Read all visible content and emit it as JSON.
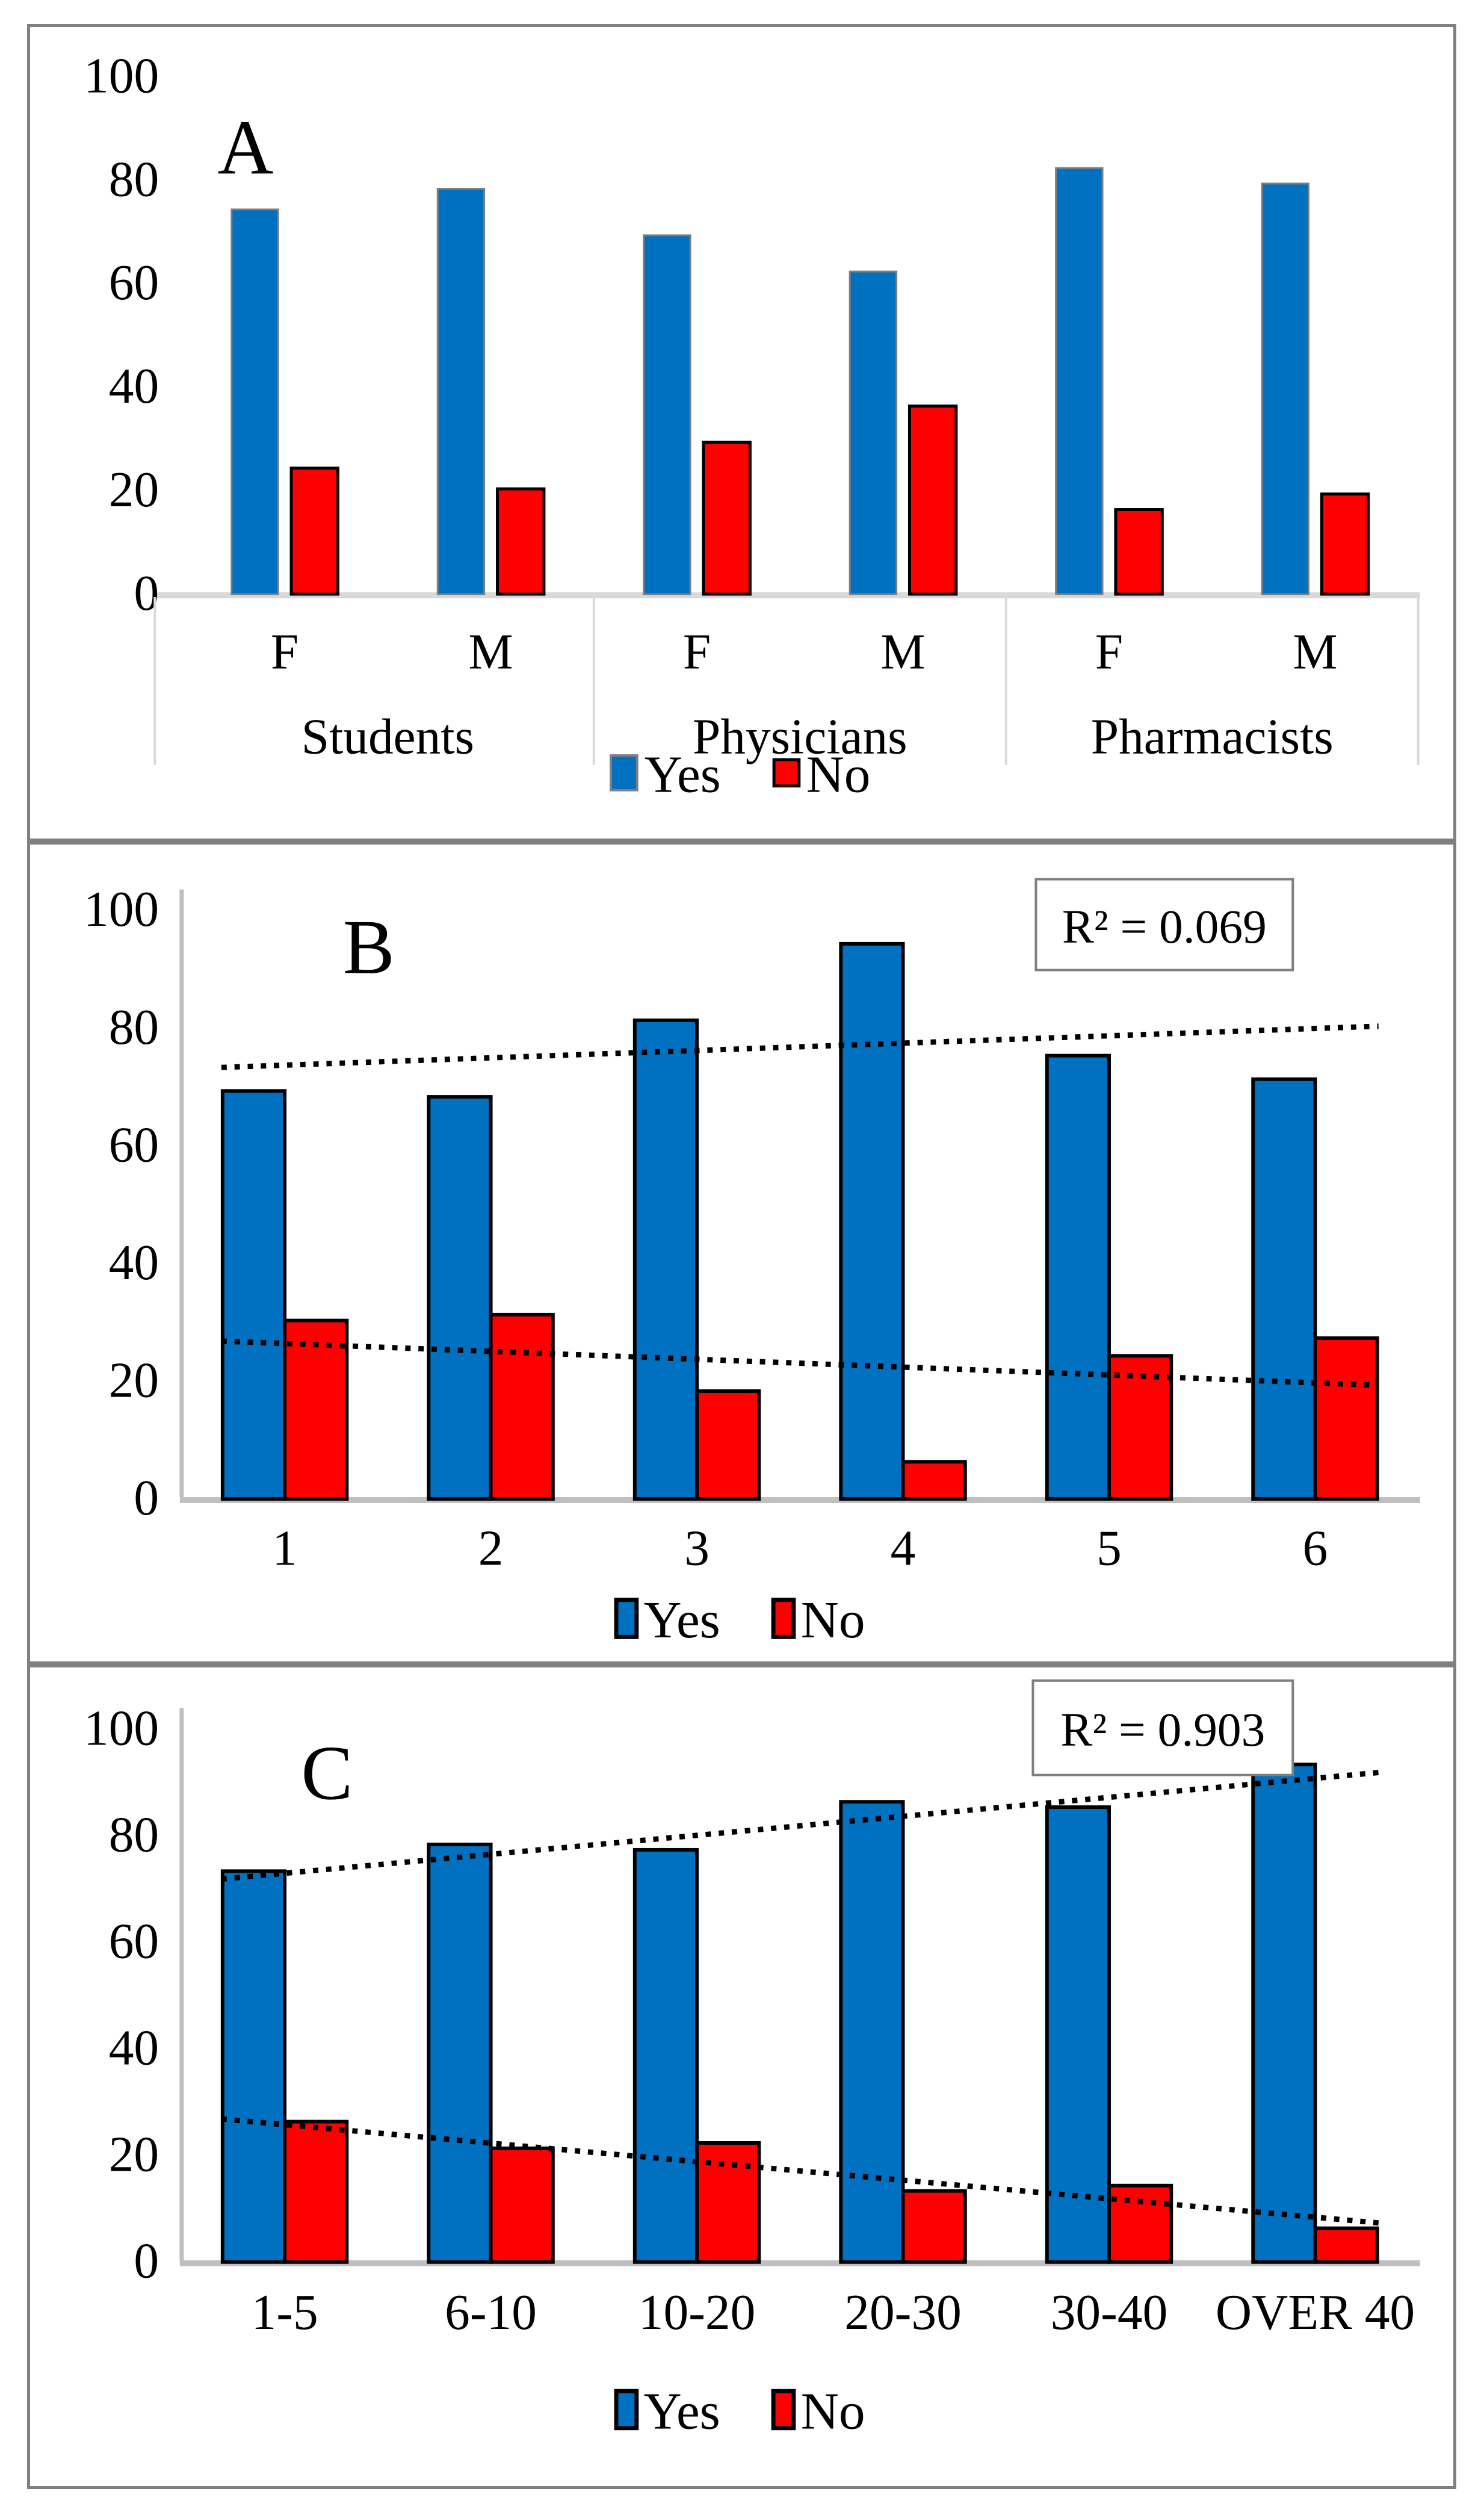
{
  "figure": {
    "background_color": "#FFFFFF",
    "panel_border_color": "#808080",
    "axis_color_panel_a": "#D9D9D9",
    "axis_color_panels_bc": "#BFBFBF",
    "trendline_color": "#000000",
    "series_colors": {
      "yes": "#0070C0",
      "no": "#FE0000"
    },
    "legend": {
      "yes_label": "Yes",
      "no_label": "No"
    }
  },
  "chart_data": [
    {
      "id": "A",
      "type": "bar",
      "title": "A",
      "categories": [
        "F",
        "M",
        "F",
        "M",
        "F",
        "M"
      ],
      "group_labels": [
        "Students",
        "Physicians",
        "Pharmacists"
      ],
      "series": [
        {
          "name": "Yes",
          "color": "#0070C0",
          "values": [
            74,
            78,
            69,
            62,
            82,
            79
          ]
        },
        {
          "name": "No",
          "color": "#FE0000",
          "values": [
            24,
            20,
            29,
            36,
            16,
            19
          ]
        }
      ],
      "ylim": [
        0,
        100
      ],
      "yticks": [
        0,
        20,
        40,
        60,
        80,
        100
      ],
      "grid": false,
      "legend_position": "bottom"
    },
    {
      "id": "B",
      "type": "bar",
      "title": "B",
      "categories": [
        "1",
        "2",
        "3",
        "4",
        "5",
        "6"
      ],
      "series": [
        {
          "name": "Yes",
          "color": "#0070C0",
          "values": [
            69,
            68,
            81,
            94,
            75,
            71
          ]
        },
        {
          "name": "No",
          "color": "#FE0000",
          "values": [
            30,
            31,
            18,
            6,
            24,
            27
          ]
        }
      ],
      "ylim": [
        0,
        100
      ],
      "yticks": [
        0,
        20,
        40,
        60,
        80,
        100
      ],
      "grid": false,
      "r2_label": "R² = 0.069",
      "trendlines": [
        {
          "series": "Yes",
          "style": "dotted",
          "start_value": 73,
          "end_value": 80
        },
        {
          "series": "No",
          "style": "dotted",
          "start_value": 26.5,
          "end_value": 19
        }
      ],
      "legend_position": "bottom"
    },
    {
      "id": "C",
      "type": "bar",
      "title": "C",
      "categories": [
        "1-5",
        "6-10",
        "10-20",
        "20-30",
        "30-40",
        "OVER 40"
      ],
      "series": [
        {
          "name": "Yes",
          "color": "#0070C0",
          "values": [
            73,
            78,
            77,
            86,
            85,
            93
          ]
        },
        {
          "name": "No",
          "color": "#FE0000",
          "values": [
            26,
            21,
            22,
            13,
            14,
            6
          ]
        }
      ],
      "ylim": [
        0,
        100
      ],
      "yticks": [
        0,
        20,
        40,
        60,
        80,
        100
      ],
      "grid": false,
      "r2_label": "R² = 0.903",
      "trendlines": [
        {
          "series": "Yes",
          "style": "dotted",
          "start_value": 71.5,
          "end_value": 91.5
        },
        {
          "series": "No",
          "style": "dotted",
          "start_value": 26.5,
          "end_value": 7
        }
      ],
      "legend_position": "bottom"
    }
  ]
}
